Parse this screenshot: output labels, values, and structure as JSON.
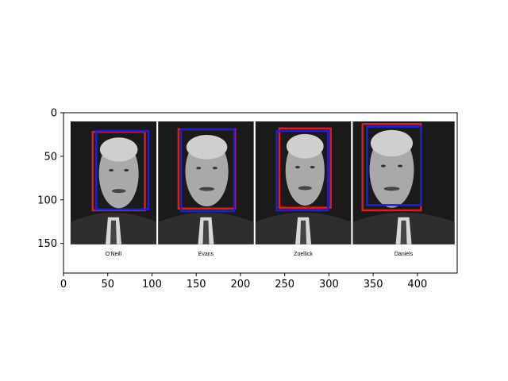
{
  "image": {
    "description_free": true,
    "colors": {
      "box_a": "#e31a1c",
      "box_b": "#1f1fd6",
      "panel_bg": "#111111"
    },
    "axes": {
      "xlim": [
        0,
        445
      ],
      "ylim": [
        184,
        0
      ],
      "xticks": [
        0,
        50,
        100,
        150,
        200,
        250,
        300,
        350,
        400
      ],
      "yticks": [
        0,
        50,
        100,
        150
      ]
    },
    "panels": [
      {
        "label": "O'Neill",
        "x0": 8,
        "x1": 105,
        "y0": 10,
        "y1": 151,
        "red": [
          33,
          22,
          92,
          112
        ],
        "blue": [
          37,
          21,
          96,
          111
        ]
      },
      {
        "label": "Evans",
        "x0": 107,
        "x1": 215,
        "y0": 10,
        "y1": 151,
        "red": [
          130,
          19,
          194,
          110
        ],
        "blue": [
          133,
          19,
          193,
          113
        ]
      },
      {
        "label": "Zoellick",
        "x0": 217,
        "x1": 325,
        "y0": 10,
        "y1": 151,
        "red": [
          244,
          18,
          302,
          109
        ],
        "blue": [
          241,
          21,
          299,
          112
        ]
      },
      {
        "label": "Daniels",
        "x0": 327,
        "x1": 442,
        "y0": 10,
        "y1": 151,
        "red": [
          338,
          13,
          404,
          112
        ],
        "blue": [
          343,
          16,
          404,
          106
        ]
      }
    ]
  }
}
